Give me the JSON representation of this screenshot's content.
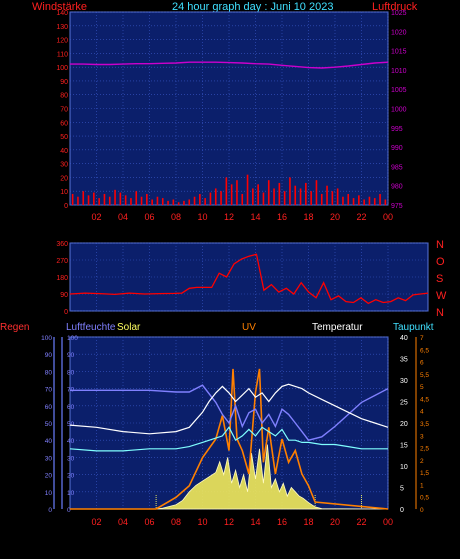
{
  "header": {
    "left_label": "Windstärke",
    "title": "24 hour graph day : Juni 10 2023",
    "right_label": "Luftdruck"
  },
  "colors": {
    "background": "#000000",
    "plot_bg": "#0b1f6b",
    "grid": "#3a58c8",
    "wind": "#ff0000",
    "pressure": "#cc00cc",
    "humidity": "#8080ff",
    "solar": "#ffffa0",
    "uv": "#ff8000",
    "temperature": "#ffffff",
    "dewpoint": "#80ffff",
    "tick_label": "#ff2020",
    "title": "#40e0ff"
  },
  "chart_data": [
    {
      "id": "wind-pressure",
      "type": "line",
      "x_ticks": [
        "02",
        "04",
        "06",
        "08",
        "10",
        "12",
        "14",
        "16",
        "18",
        "20",
        "22",
        "00"
      ],
      "xlim": [
        0,
        24
      ],
      "ylim_left": [
        0,
        140
      ],
      "yticks_left": [
        0,
        10,
        20,
        30,
        40,
        50,
        60,
        70,
        80,
        90,
        100,
        110,
        120,
        130,
        140
      ],
      "ylim_right": [
        975,
        1025
      ],
      "yticks_right": [
        975,
        980,
        985,
        990,
        995,
        1000,
        1005,
        1010,
        1015,
        1020,
        1025
      ],
      "series": [
        {
          "axis": "right",
          "style": "line",
          "x": [
            0,
            1,
            2,
            3,
            4,
            5,
            6,
            7,
            8,
            9,
            10,
            11,
            12,
            13,
            14,
            15,
            16,
            17,
            18,
            19,
            20,
            21,
            22,
            23,
            24
          ],
          "values": [
            1011.5,
            1011.5,
            1011.4,
            1011.4,
            1011.5,
            1011.6,
            1011.6,
            1011.7,
            1011.8,
            1012.0,
            1012.0,
            1012.0,
            1011.9,
            1011.8,
            1011.6,
            1011.5,
            1011.2,
            1010.9,
            1010.6,
            1010.5,
            1010.7,
            1011.0,
            1011.4,
            1011.8,
            1012.0
          ]
        },
        {
          "axis": "left",
          "style": "bars",
          "x": [
            0.2,
            0.6,
            1.0,
            1.4,
            1.8,
            2.2,
            2.6,
            3.0,
            3.4,
            3.8,
            4.2,
            4.6,
            5.0,
            5.4,
            5.8,
            6.2,
            6.6,
            7.0,
            7.4,
            7.8,
            8.2,
            8.6,
            9.0,
            9.4,
            9.8,
            10.2,
            10.6,
            11.0,
            11.4,
            11.8,
            12.2,
            12.6,
            13.0,
            13.4,
            13.8,
            14.2,
            14.6,
            15.0,
            15.4,
            15.8,
            16.2,
            16.6,
            17.0,
            17.4,
            17.8,
            18.2,
            18.6,
            19.0,
            19.4,
            19.8,
            20.2,
            20.6,
            21.0,
            21.4,
            21.8,
            22.2,
            22.6,
            23.0,
            23.4,
            23.8
          ],
          "values": [
            8,
            6,
            10,
            7,
            9,
            5,
            8,
            6,
            11,
            9,
            7,
            5,
            10,
            6,
            8,
            4,
            6,
            5,
            3,
            4,
            2,
            3,
            4,
            6,
            8,
            5,
            9,
            12,
            10,
            20,
            15,
            18,
            8,
            22,
            12,
            15,
            9,
            18,
            12,
            16,
            10,
            20,
            14,
            12,
            16,
            10,
            18,
            8,
            14,
            10,
            12,
            6,
            8,
            5,
            7,
            4,
            6,
            5,
            8,
            4
          ]
        }
      ]
    },
    {
      "id": "wind-direction",
      "type": "line",
      "xlim": [
        0,
        24
      ],
      "ylim": [
        0,
        360
      ],
      "yticks": [
        0,
        90,
        180,
        270,
        360
      ],
      "direction_labels": [
        "N",
        "W",
        "S",
        "O",
        "N"
      ],
      "series": [
        {
          "style": "line",
          "x": [
            0,
            1,
            2,
            3,
            4,
            5,
            6,
            7,
            7.5,
            8,
            8.5,
            9,
            9.5,
            10,
            10.5,
            11,
            11.5,
            12,
            12.5,
            13,
            13.5,
            14,
            14.5,
            15,
            15.5,
            16,
            16.5,
            17,
            17.5,
            18,
            18.5,
            19,
            19.5,
            20,
            20.5,
            21,
            21.5,
            22,
            22.5,
            23,
            23.5,
            24
          ],
          "values": [
            90,
            95,
            92,
            88,
            95,
            90,
            92,
            93,
            95,
            120,
            125,
            125,
            125,
            200,
            180,
            250,
            275,
            290,
            300,
            110,
            140,
            100,
            120,
            90,
            150,
            100,
            70,
            150,
            60,
            80,
            50,
            45,
            70,
            40,
            60,
            45,
            50,
            70,
            55,
            85,
            90,
            95
          ]
        }
      ]
    },
    {
      "id": "multi",
      "type": "line",
      "x_ticks": [
        "02",
        "04",
        "06",
        "08",
        "10",
        "12",
        "14",
        "16",
        "18",
        "20",
        "22",
        "00"
      ],
      "xlim": [
        0,
        24
      ],
      "axes": {
        "regen": {
          "label": "Regen",
          "ylim": [
            0,
            100
          ],
          "ticks": [
            0,
            10,
            20,
            30,
            40,
            50,
            60,
            70,
            80,
            90,
            100
          ]
        },
        "luftfeuchte": {
          "label": "Luftfeuchte",
          "ylim": [
            0,
            100
          ],
          "ticks": [
            0,
            10,
            20,
            30,
            40,
            50,
            60,
            70,
            80,
            90,
            100
          ]
        },
        "solar": {
          "label": "Solar"
        },
        "uv": {
          "label": "UV"
        },
        "temperatur": {
          "label": "Temperatur",
          "ylim": [
            0,
            40
          ],
          "ticks": [
            0,
            5,
            10,
            15,
            20,
            25,
            30,
            35,
            40
          ]
        },
        "taupunkt": {
          "label": "Taupunkt",
          "ylim": [
            0,
            7
          ],
          "ticks": [
            0,
            0.5,
            1,
            1.5,
            2,
            2.5,
            3,
            3.5,
            4,
            4.5,
            5,
            5.5,
            6,
            6.5,
            7
          ]
        }
      },
      "series": [
        {
          "axis": "humidity",
          "x": [
            0,
            2,
            4,
            6,
            8,
            9,
            10,
            11,
            11.5,
            12,
            12.5,
            13,
            13.5,
            14,
            14.5,
            15,
            15.5,
            16,
            16.5,
            17,
            17.5,
            18,
            19,
            20,
            21,
            22,
            23,
            24
          ],
          "values": [
            69,
            69,
            69,
            69,
            68,
            68,
            72,
            62,
            55,
            50,
            60,
            48,
            56,
            58,
            50,
            55,
            48,
            58,
            55,
            50,
            45,
            40,
            42,
            48,
            55,
            62,
            66,
            70
          ]
        },
        {
          "axis": "temperature",
          "x": [
            0,
            2,
            4,
            6,
            8,
            9,
            10,
            10.5,
            11,
            11.5,
            12,
            12.5,
            13,
            13.5,
            14,
            14.5,
            15,
            15.5,
            16,
            16.5,
            17,
            17.5,
            18,
            19,
            20,
            21,
            22,
            23,
            24
          ],
          "values": [
            19.5,
            19,
            18,
            17.5,
            18,
            19,
            22.5,
            25,
            27,
            28.5,
            27,
            25,
            26.5,
            28,
            26,
            27,
            25,
            27,
            28.5,
            29,
            28.5,
            28,
            27,
            25.5,
            24,
            22.5,
            21,
            20,
            19
          ]
        },
        {
          "axis": "temperature",
          "x": [
            0,
            2,
            4,
            6,
            8,
            9,
            10,
            11,
            11.5,
            12,
            12.5,
            13,
            13.5,
            14,
            14.5,
            15,
            15.5,
            16,
            16.5,
            17,
            17.5,
            18,
            19,
            20,
            21,
            22,
            23,
            24
          ],
          "values": [
            14,
            13.5,
            13.5,
            14,
            14,
            14.5,
            15.5,
            16.5,
            17,
            19,
            16,
            17,
            18.5,
            17,
            19,
            18,
            17,
            18.5,
            16,
            16,
            15.5,
            15.5,
            15,
            15,
            14.5,
            14,
            14,
            14
          ]
        },
        {
          "axis": "solar",
          "style": "area",
          "x": [
            0,
            6.5,
            7,
            8,
            8.5,
            9,
            9.5,
            10,
            10.5,
            11,
            11.3,
            11.6,
            11.9,
            12.2,
            12.5,
            12.8,
            13.1,
            13.4,
            13.7,
            14,
            14.3,
            14.6,
            14.9,
            15.2,
            15.5,
            15.8,
            16.1,
            16.4,
            16.7,
            17,
            17.3,
            17.6,
            18,
            18.5,
            19,
            24
          ],
          "values": [
            0,
            0,
            0.2,
            1,
            2,
            4,
            5.5,
            6.5,
            7.5,
            8.5,
            11,
            8,
            12,
            6,
            9,
            5,
            8,
            4,
            13,
            7,
            14,
            6,
            15,
            5,
            7,
            4,
            6,
            3,
            5,
            4,
            3,
            2.5,
            1.5,
            0.5,
            0.1,
            0
          ]
        },
        {
          "axis": "uv",
          "x": [
            0,
            6.5,
            8,
            9,
            10,
            11,
            11.5,
            12,
            12.3,
            12.6,
            13,
            13.5,
            14,
            14.3,
            14.6,
            15,
            15.5,
            16,
            16.5,
            17,
            17.5,
            18,
            18.5,
            24
          ],
          "values": [
            0,
            0,
            0.5,
            1,
            2.2,
            3,
            4,
            2.5,
            6,
            3,
            2.5,
            1.5,
            5,
            6,
            2,
            3.5,
            1.5,
            3,
            2,
            2.5,
            1.5,
            1,
            0.3,
            0
          ]
        }
      ]
    }
  ]
}
